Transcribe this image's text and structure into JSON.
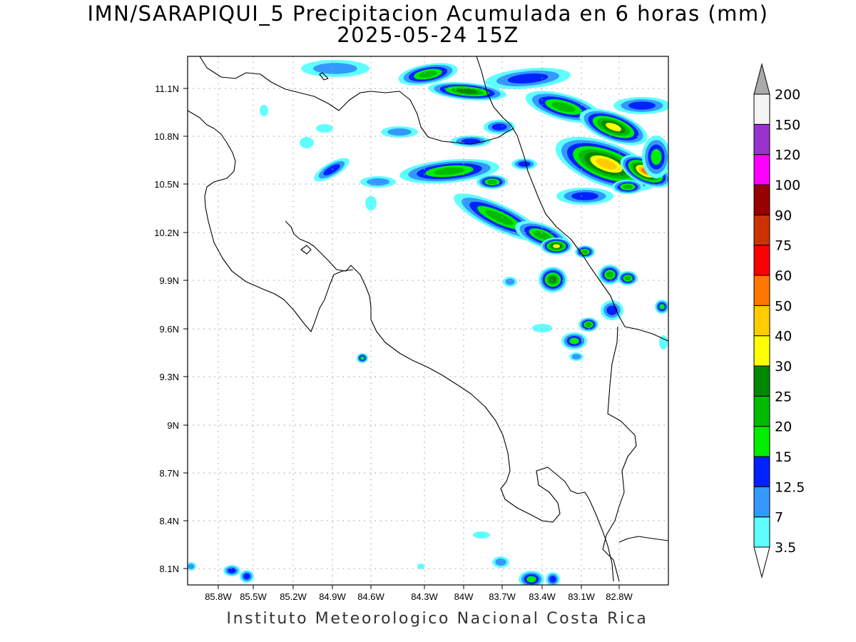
{
  "title": {
    "line1": "IMN/SARAPIQUI_5 Precipitacion Acumulada en 6 horas (mm)",
    "line2": "2025-05-24 15Z"
  },
  "credit": "Instituto Meteorologico Nacional Costa Rica",
  "map": {
    "lon_range": [
      -86.05,
      -82.55
    ],
    "lat_range": [
      8.0,
      11.25
    ],
    "gridlines": "dotted",
    "x_ticks": [
      "85.8W",
      "85.5W",
      "85.2W",
      "84.9W",
      "84.6W",
      "84.3W",
      "84W",
      "83.7W",
      "83.4W",
      "83.1W",
      "82.8W"
    ],
    "y_ticks": [
      "11.1N",
      "10.8N",
      "10.5N",
      "10.2N",
      "9.9N",
      "9.6N",
      "9.3N",
      "9N",
      "8.7N",
      "8.4N",
      "8.1N"
    ]
  },
  "colorbar": {
    "labels": [
      "3.5",
      "7",
      "12.5",
      "15",
      "20",
      "25",
      "30",
      "40",
      "50",
      "60",
      "75",
      "90",
      "100",
      "120",
      "150",
      "200"
    ],
    "colors": [
      "#ffffff",
      "#5fffff",
      "#3399ff",
      "#0022ff",
      "#00ee00",
      "#00bb00",
      "#008800",
      "#ffff00",
      "#ffcc00",
      "#ff7700",
      "#ff0000",
      "#cc3300",
      "#990000",
      "#ff00ff",
      "#9933cc",
      "#f4f4f4",
      "#aaaaaa"
    ],
    "over_arrow": "gray",
    "under_arrow": "white"
  }
}
